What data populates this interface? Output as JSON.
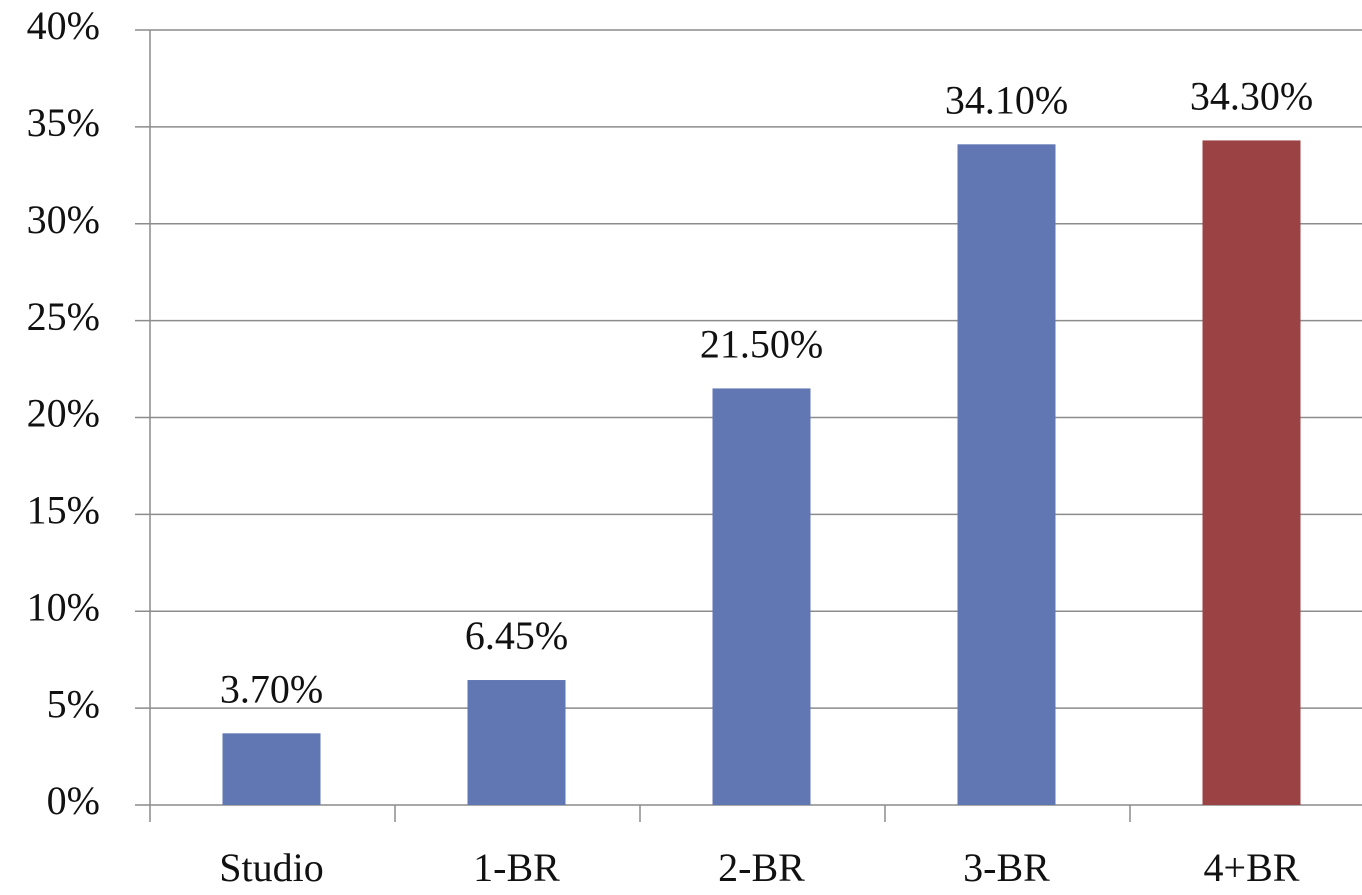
{
  "chart_data": {
    "type": "bar",
    "categories": [
      "Studio",
      "1-BR",
      "2-BR",
      "3-BR",
      "4+BR"
    ],
    "values": [
      3.7,
      6.45,
      21.5,
      34.1,
      34.3
    ],
    "value_labels": [
      "3.70%",
      "6.45%",
      "21.50%",
      "34.10%",
      "34.30%"
    ],
    "colors": [
      "#6077b4",
      "#6077b4",
      "#6077b4",
      "#6077b4",
      "#9b4245"
    ],
    "ylim": [
      0,
      40
    ],
    "yticks": [
      {
        "value": 0,
        "label": "0%"
      },
      {
        "value": 5,
        "label": "5%"
      },
      {
        "value": 10,
        "label": "10%"
      },
      {
        "value": 15,
        "label": "15%"
      },
      {
        "value": 20,
        "label": "20%"
      },
      {
        "value": 25,
        "label": "25%"
      },
      {
        "value": 30,
        "label": "30%"
      },
      {
        "value": 35,
        "label": "35%"
      },
      {
        "value": 40,
        "label": "40%"
      }
    ],
    "grid": true
  }
}
